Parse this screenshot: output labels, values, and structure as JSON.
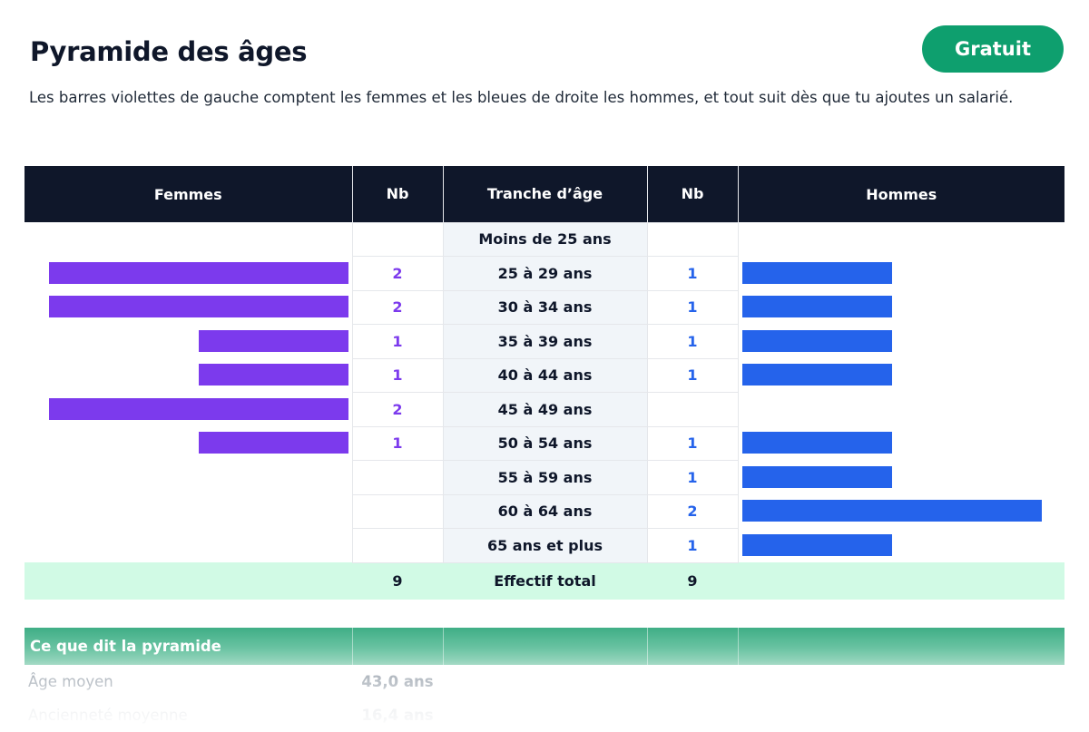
{
  "header": {
    "title": "Pyramide des âges",
    "badge": "Gratuit",
    "subtitle": "Les barres violettes de gauche comptent les femmes et les bleues de droite les hommes, et tout suit dès que tu ajoutes un salarié."
  },
  "pyramid": {
    "columns": {
      "women": "Femmes",
      "nb_women": "Nb",
      "age": "Tranche d’âge",
      "nb_men": "Nb",
      "men": "Hommes"
    },
    "rows": [
      {
        "age": "Moins de 25 ans",
        "women": null,
        "men": null
      },
      {
        "age": "25 à 29 ans",
        "women": 2,
        "men": 1
      },
      {
        "age": "30 à 34 ans",
        "women": 2,
        "men": 1
      },
      {
        "age": "35 à 39 ans",
        "women": 1,
        "men": 1
      },
      {
        "age": "40 à 44 ans",
        "women": 1,
        "men": 1
      },
      {
        "age": "45 à 49 ans",
        "women": 2,
        "men": null
      },
      {
        "age": "50 à 54 ans",
        "women": 1,
        "men": 1
      },
      {
        "age": "55 à 59 ans",
        "women": null,
        "men": 1
      },
      {
        "age": "60 à 64 ans",
        "women": null,
        "men": 2
      },
      {
        "age": "65 ans et plus",
        "women": null,
        "men": 1
      }
    ],
    "total": {
      "women": "9",
      "label": "Effectif total",
      "men": "9"
    },
    "max_count": 2,
    "colors": {
      "women": "#7c3aed",
      "men": "#2563eb",
      "total_bg": "#d1fae5",
      "header_bg": "#0f172a"
    }
  },
  "summary": {
    "title": "Ce que dit la pyramide",
    "rows": [
      {
        "label": "Âge moyen",
        "value": "43,0 ans"
      },
      {
        "label": "Ancienneté moyenne",
        "value": "16,4 ans"
      }
    ]
  }
}
